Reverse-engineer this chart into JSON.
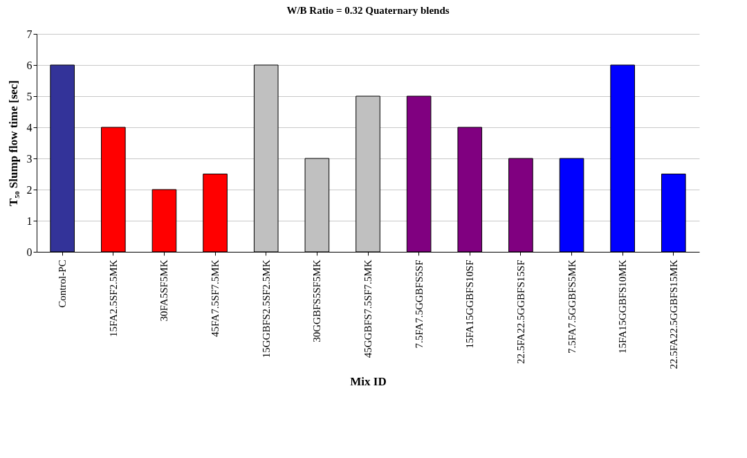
{
  "chart_data": {
    "type": "bar",
    "title": "W/B Ratio = 0.32 Quaternary blends",
    "xlabel": "Mix ID",
    "ylabel": "T₅₀ Slump flow time [sec]",
    "categories": [
      "Control-PC",
      "15FA2.5SF2.5MK",
      "30FA5SF5MK",
      "45FA7.5SF7.5MK",
      "15GGBFS2.5SF2.5MK",
      "30GGBFS5SF5MK",
      "45GGBFS7.5SF7.5MK",
      "7.5FA7.5GGBFS5SF",
      "15FA15GGBFS10SF",
      "22.5FA22.5GGBFS15SF",
      "7.5FA7.5GGBFS5MK",
      "15FA15GGBFS10MK",
      "22.5FA22.5GGBFS15MK"
    ],
    "values": [
      6,
      4,
      2,
      2.5,
      6,
      3,
      5,
      5,
      4,
      3,
      3,
      6,
      2.5
    ],
    "colors": [
      "#333399",
      "#ff0000",
      "#ff0000",
      "#ff0000",
      "#c0c0c0",
      "#c0c0c0",
      "#c0c0c0",
      "#800080",
      "#800080",
      "#800080",
      "#0000ff",
      "#0000ff",
      "#0000ff"
    ],
    "ylim": [
      0,
      7
    ],
    "yticks": [
      0,
      1,
      2,
      3,
      4,
      5,
      6,
      7
    ],
    "grid": "y",
    "legend": false
  }
}
